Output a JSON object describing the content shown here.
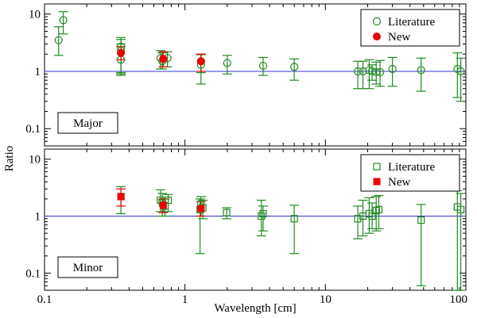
{
  "chart_data": {
    "type": "scatter",
    "xscale": "log",
    "yscale": "log",
    "xlim": [
      0.1,
      100
    ],
    "ylim": [
      0.05,
      15
    ],
    "xlabel": "Wavelength [cm]",
    "ylabel": "Ratio",
    "x_ticks": [
      "0.1",
      "1",
      "10",
      "100"
    ],
    "y_ticks": [
      "0.1",
      "1",
      "10"
    ],
    "reference_line": {
      "y": 1,
      "color": "#3333cc"
    },
    "colors": {
      "literature": "#228b22",
      "new": "#ee0000"
    },
    "panels": [
      {
        "name": "Major",
        "label": "Major",
        "legend": [
          "Literature",
          "New"
        ],
        "literature_marker": "circle",
        "new_marker": "circle",
        "literature": [
          {
            "x": 0.126,
            "y": 3.5,
            "lo": 1.9,
            "hi": 6.0
          },
          {
            "x": 0.136,
            "y": 7.8,
            "lo": 4.5,
            "hi": 11.0
          },
          {
            "x": 0.35,
            "y": 2.7,
            "lo": 0.95,
            "hi": 3.9
          },
          {
            "x": 0.35,
            "y": 2.3,
            "lo": 0.9,
            "hi": 3.6
          },
          {
            "x": 0.35,
            "y": 1.6,
            "lo": 0.85,
            "hi": 3.0
          },
          {
            "x": 0.67,
            "y": 1.7,
            "lo": 1.1,
            "hi": 2.3
          },
          {
            "x": 0.69,
            "y": 1.5,
            "lo": 1.1,
            "hi": 2.1
          },
          {
            "x": 0.75,
            "y": 1.7,
            "lo": 1.2,
            "hi": 2.2
          },
          {
            "x": 1.3,
            "y": 1.3,
            "lo": 0.6,
            "hi": 2.0
          },
          {
            "x": 1.3,
            "y": 1.5,
            "lo": 0.95,
            "hi": 1.95
          },
          {
            "x": 2.0,
            "y": 1.4,
            "lo": 0.9,
            "hi": 1.9
          },
          {
            "x": 3.6,
            "y": 1.25,
            "lo": 0.85,
            "hi": 1.75
          },
          {
            "x": 6.0,
            "y": 1.2,
            "lo": 0.7,
            "hi": 1.65
          },
          {
            "x": 17.0,
            "y": 1.0,
            "lo": 0.5,
            "hi": 1.5
          },
          {
            "x": 18.5,
            "y": 1.0,
            "lo": 0.5,
            "hi": 1.5
          },
          {
            "x": 20.5,
            "y": 1.05,
            "lo": 0.5,
            "hi": 1.6
          },
          {
            "x": 21.5,
            "y": 1.0,
            "lo": 0.7,
            "hi": 1.3
          },
          {
            "x": 23.0,
            "y": 0.97,
            "lo": 0.6,
            "hi": 1.45
          },
          {
            "x": 24.5,
            "y": 0.97,
            "lo": 0.55,
            "hi": 1.55
          },
          {
            "x": 30.0,
            "y": 1.1,
            "lo": 0.55,
            "hi": 1.75
          },
          {
            "x": 48.0,
            "y": 1.05,
            "lo": 0.45,
            "hi": 1.7
          },
          {
            "x": 87.0,
            "y": 1.1,
            "lo": 0.35,
            "hi": 2.1
          },
          {
            "x": 92.0,
            "y": 1.0,
            "lo": 0.3,
            "hi": 1.7
          }
        ],
        "new": [
          {
            "x": 0.35,
            "y": 2.1,
            "lo": 1.6,
            "hi": 2.7
          },
          {
            "x": 0.7,
            "y": 1.65,
            "lo": 1.2,
            "hi": 2.2
          },
          {
            "x": 1.3,
            "y": 1.5,
            "lo": 1.0,
            "hi": 2.0
          }
        ]
      },
      {
        "name": "Minor",
        "label": "Minor",
        "legend": [
          "Literature",
          "New"
        ],
        "literature_marker": "square",
        "new_marker": "square",
        "literature": [
          {
            "x": 0.35,
            "y": 2.2,
            "lo": 1.1,
            "hi": 3.3
          },
          {
            "x": 0.67,
            "y": 1.9,
            "lo": 1.2,
            "hi": 2.9
          },
          {
            "x": 0.69,
            "y": 1.7,
            "lo": 1.0,
            "hi": 2.5
          },
          {
            "x": 0.72,
            "y": 1.5,
            "lo": 1.0,
            "hi": 2.0
          },
          {
            "x": 0.76,
            "y": 1.9,
            "lo": 1.2,
            "hi": 2.4
          },
          {
            "x": 1.28,
            "y": 1.3,
            "lo": 0.22,
            "hi": 2.0
          },
          {
            "x": 1.3,
            "y": 1.6,
            "lo": 1.0,
            "hi": 2.2
          },
          {
            "x": 1.34,
            "y": 1.4,
            "lo": 0.9,
            "hi": 1.9
          },
          {
            "x": 1.98,
            "y": 1.15,
            "lo": 0.9,
            "hi": 1.4
          },
          {
            "x": 3.5,
            "y": 1.0,
            "lo": 0.45,
            "hi": 1.9
          },
          {
            "x": 3.6,
            "y": 1.1,
            "lo": 0.55,
            "hi": 1.5
          },
          {
            "x": 6.0,
            "y": 0.9,
            "lo": 0.22,
            "hi": 1.55
          },
          {
            "x": 17.0,
            "y": 0.9,
            "lo": 0.4,
            "hi": 1.5
          },
          {
            "x": 18.5,
            "y": 1.0,
            "lo": 0.45,
            "hi": 1.9
          },
          {
            "x": 20.5,
            "y": 1.1,
            "lo": 0.5,
            "hi": 2.1
          },
          {
            "x": 21.5,
            "y": 1.0,
            "lo": 0.6,
            "hi": 1.7
          },
          {
            "x": 23.0,
            "y": 1.25,
            "lo": 0.55,
            "hi": 2.2
          },
          {
            "x": 24.0,
            "y": 1.3,
            "lo": 0.6,
            "hi": 2.3
          },
          {
            "x": 48.0,
            "y": 0.85,
            "lo": 0.06,
            "hi": 1.6
          },
          {
            "x": 87.0,
            "y": 1.45,
            "lo": 0.05,
            "hi": 2.8
          },
          {
            "x": 92.0,
            "y": 1.3,
            "lo": 0.05,
            "hi": 2.5
          }
        ],
        "new": [
          {
            "x": 0.35,
            "y": 2.2,
            "lo": 1.5,
            "hi": 3.0
          },
          {
            "x": 0.7,
            "y": 1.55,
            "lo": 1.15,
            "hi": 2.0
          },
          {
            "x": 1.3,
            "y": 1.35,
            "lo": 1.0,
            "hi": 1.8
          }
        ]
      }
    ]
  }
}
